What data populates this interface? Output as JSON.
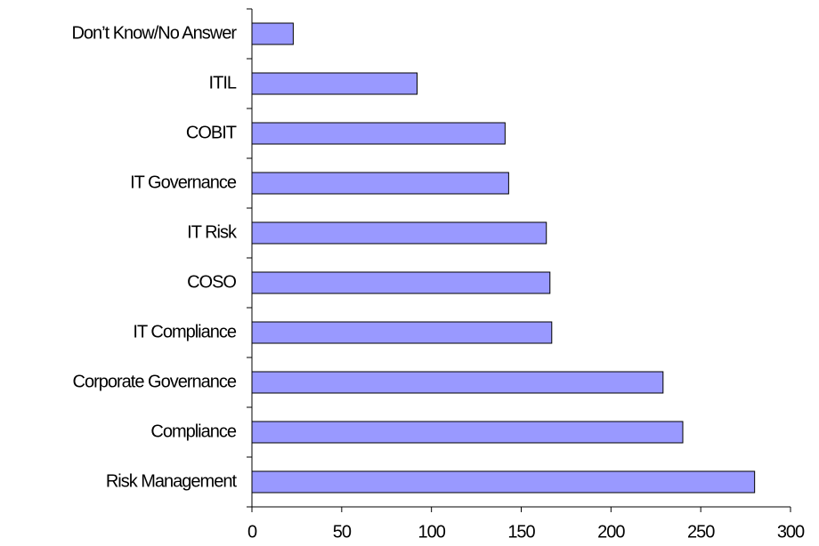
{
  "chart_data": {
    "type": "barh",
    "categories": [
      "Don’t Know/No Answer",
      "ITIL",
      "COBIT",
      "IT Governance",
      "IT Risk",
      "COSO",
      "IT Compliance",
      "Corporate Governance",
      "Compliance",
      "Risk Management"
    ],
    "values": [
      23,
      92,
      141,
      143,
      164,
      166,
      167,
      229,
      240,
      280
    ],
    "color": "#9999ff",
    "xlim": [
      0,
      300
    ],
    "xticks": [
      0,
      50,
      100,
      150,
      200,
      250,
      300
    ],
    "grid": false
  }
}
